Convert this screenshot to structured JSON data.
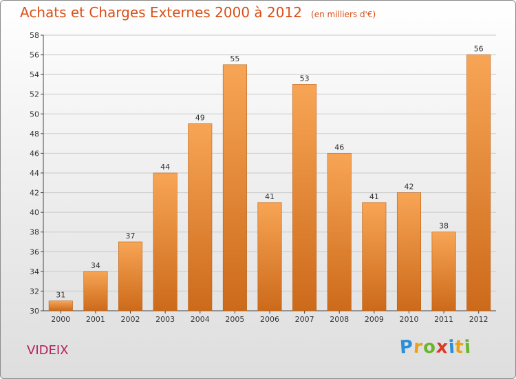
{
  "title": "Achats et Charges Externes 2000 à 2012",
  "subtitle": "(en milliers d'€)",
  "commune": "VIDEIX",
  "logo": {
    "letters": [
      "P",
      "r",
      "o",
      "x",
      "i",
      "t",
      "i"
    ],
    "colors": [
      "#2a8fd6",
      "#e8a21a",
      "#6bb52c",
      "#d93a2b",
      "#2a8fd6",
      "#e8a21a",
      "#6bb52c"
    ]
  },
  "colors": {
    "bar_light": "#f7a555",
    "bar_dark": "#cc6a1a",
    "bar_edge": "#b85f14",
    "grid": "#c9c9c9",
    "axis": "#444444"
  },
  "chart_data": {
    "type": "bar",
    "categories": [
      "2000",
      "2001",
      "2002",
      "2003",
      "2004",
      "2005",
      "2006",
      "2007",
      "2008",
      "2009",
      "2010",
      "2011",
      "2012"
    ],
    "values": [
      31,
      34,
      37,
      44,
      49,
      55,
      41,
      53,
      46,
      41,
      42,
      38,
      56
    ],
    "ylim": [
      30,
      58
    ],
    "yticks": [
      30,
      32,
      34,
      36,
      38,
      40,
      42,
      44,
      46,
      48,
      50,
      52,
      54,
      56,
      58
    ],
    "grid": true,
    "data_labels": true
  }
}
